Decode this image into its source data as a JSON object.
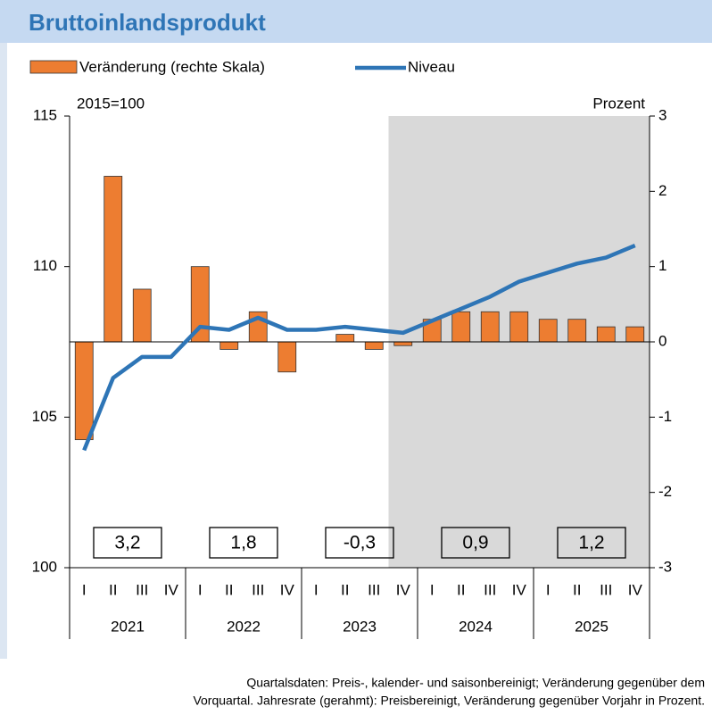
{
  "chart_data": {
    "type": "bar_line",
    "title": "Bruttoinlandsprodukt",
    "y_label": "2015=100",
    "y2_label": "Prozent",
    "categories": [
      "I",
      "II",
      "III",
      "IV",
      "I",
      "II",
      "III",
      "IV",
      "I",
      "II",
      "III",
      "IV",
      "I",
      "II",
      "III",
      "IV",
      "I",
      "II",
      "III",
      "IV"
    ],
    "years": [
      "2021",
      "2022",
      "2023",
      "2024",
      "2025"
    ],
    "series": [
      {
        "name": "Veränderung (rechte Skala)",
        "color": "#ed7d31",
        "axis": "y2",
        "values": [
          -1.3,
          2.2,
          0.7,
          0.0,
          1.0,
          -0.1,
          0.4,
          -0.4,
          0.0,
          0.1,
          -0.1,
          -0.05,
          0.3,
          0.4,
          0.4,
          0.4,
          0.3,
          0.3,
          0.2,
          0.2
        ]
      },
      {
        "name": "Niveau",
        "color": "#2e75b6",
        "values": [
          103.9,
          106.3,
          107.0,
          107.0,
          108.0,
          107.9,
          108.3,
          107.9,
          107.9,
          108.0,
          107.9,
          107.8,
          108.2,
          108.6,
          109.0,
          109.5,
          109.8,
          110.1,
          110.3,
          110.7
        ]
      }
    ],
    "annual": {
      "values": [
        3.2,
        1.8,
        -0.3,
        0.9,
        1.2
      ],
      "value_labels": [
        "3,2",
        "1,8",
        "-0,3",
        "0,9",
        "1,2"
      ]
    },
    "ylim": [
      100,
      115
    ],
    "yticks": [
      100,
      105,
      110,
      115
    ],
    "y2lim": [
      -3,
      3
    ],
    "y2ticks": [
      -3,
      -2,
      -1,
      0,
      1,
      2,
      3
    ],
    "footnote": [
      "Quartalsdaten: Preis-, kalender- und saisonbereinigt; Veränderung gegenüber dem",
      "Vorquartal. Jahresrate (gerahmt): Preisbereinigt, Veränderung gegenüber Vorjahr in Prozent."
    ]
  }
}
